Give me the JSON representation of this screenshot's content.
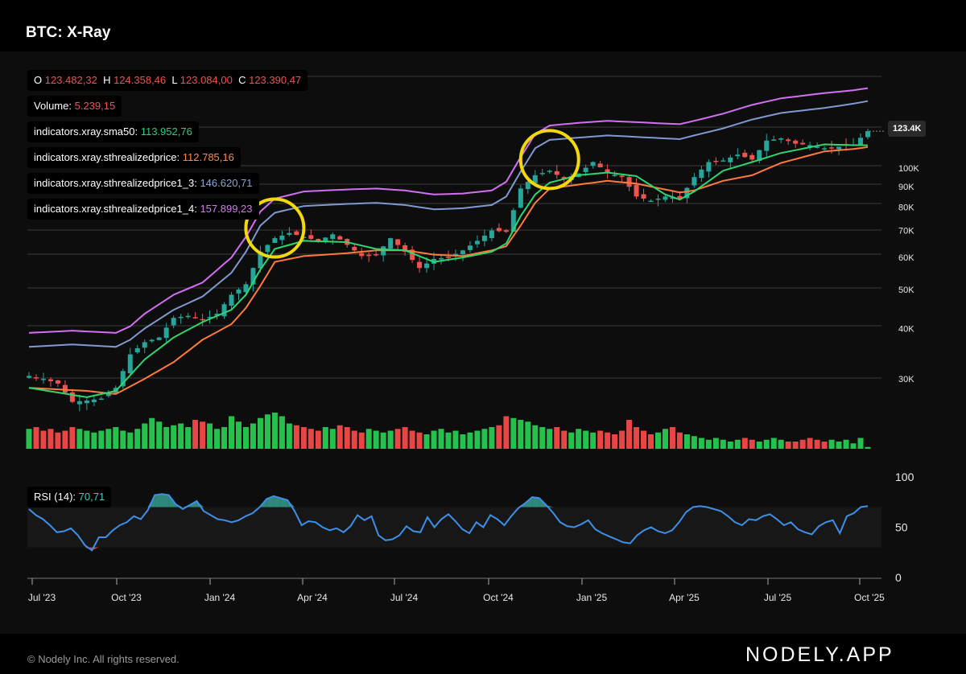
{
  "header": {
    "title": "BTC: X-Ray"
  },
  "legend": {
    "ohlc": {
      "o_label": "O",
      "o": "123.482,32",
      "h_label": "H",
      "h": "124.358,46",
      "l_label": "L",
      "l": "123.084,00",
      "c_label": "C",
      "c": "123.390,47"
    },
    "volume": {
      "label": "Volume:",
      "value": "5.239,15"
    },
    "sma50": {
      "label": "indicators.xray.sma50:",
      "value": "113.952,76"
    },
    "realized": {
      "label": "indicators.xray.sthrealizedprice:",
      "value": "112.785,16"
    },
    "realized13": {
      "label": "indicators.xray.sthrealizedprice1_3:",
      "value": "146.620,71"
    },
    "realized14": {
      "label": "indicators.xray.sthrealizedprice1_4:",
      "value": "157.899,23"
    }
  },
  "rsi_legend": {
    "label": "RSI (14):",
    "value": "70,71"
  },
  "price_tag": "123.4K",
  "footer": {
    "copyright": "© Nodely Inc. All rights reserved.",
    "brand": "NODELY.APP"
  },
  "colors": {
    "up": "#26a69a",
    "down": "#ef5350",
    "vol_up": "#26c04e",
    "vol_down": "#e84545",
    "sma50": "#2ed66f",
    "realized": "#ff7a3c",
    "realized13": "#7f9ad0",
    "realized14": "#d46ff5",
    "rsi": "#3d8fe8",
    "highlight": "#f2d80c"
  },
  "chart_data": [
    {
      "type": "candlestick",
      "scale": "log",
      "y_ticks": [
        "30K",
        "40K",
        "50K",
        "60K",
        "70K",
        "80K",
        "90K",
        "100K"
      ],
      "y_tick_values": [
        30000,
        40000,
        50000,
        60000,
        70000,
        80000,
        90000,
        100000
      ],
      "x_ticks": [
        "Jul '23",
        "Oct '23",
        "Jan '24",
        "Apr '24",
        "Jul '24",
        "Oct '24",
        "Jan '25",
        "Apr '25",
        "Jul '25",
        "Oct '25"
      ],
      "last_price_label": "123.4K",
      "series": [
        {
          "name": "indicators.xray.sma50"
        },
        {
          "name": "indicators.xray.sthrealizedprice"
        },
        {
          "name": "indicators.xray.sthrealizedprice1_3"
        },
        {
          "name": "indicators.xray.sthrealizedprice1_4"
        }
      ],
      "price_path": [
        [
          0,
          30500
        ],
        [
          2,
          30000
        ],
        [
          4,
          29200
        ],
        [
          6,
          26300
        ],
        [
          8,
          26500
        ],
        [
          10,
          26800
        ],
        [
          12,
          28500
        ],
        [
          14,
          34500
        ],
        [
          16,
          37000
        ],
        [
          18,
          38000
        ],
        [
          20,
          42500
        ],
        [
          22,
          43000
        ],
        [
          24,
          42000
        ],
        [
          26,
          43500
        ],
        [
          28,
          48500
        ],
        [
          30,
          51500
        ],
        [
          32,
          62000
        ],
        [
          34,
          67000
        ],
        [
          36,
          69000
        ],
        [
          38,
          67500
        ],
        [
          40,
          66000
        ],
        [
          42,
          68500
        ],
        [
          44,
          64500
        ],
        [
          46,
          60500
        ],
        [
          48,
          61000
        ],
        [
          50,
          67000
        ],
        [
          52,
          62000
        ],
        [
          54,
          56500
        ],
        [
          56,
          59500
        ],
        [
          58,
          60000
        ],
        [
          60,
          62500
        ],
        [
          62,
          66000
        ],
        [
          64,
          70000
        ],
        [
          66,
          69500
        ],
        [
          68,
          89000
        ],
        [
          70,
          96000
        ],
        [
          72,
          98500
        ],
        [
          74,
          94000
        ],
        [
          76,
          97000
        ],
        [
          78,
          103500
        ],
        [
          80,
          97500
        ],
        [
          82,
          95000
        ],
        [
          84,
          85000
        ],
        [
          86,
          83000
        ],
        [
          88,
          85000
        ],
        [
          90,
          84000
        ],
        [
          92,
          95000
        ],
        [
          94,
          103500
        ],
        [
          96,
          104500
        ],
        [
          98,
          108000
        ],
        [
          100,
          105000
        ],
        [
          102,
          117000
        ],
        [
          104,
          118500
        ],
        [
          106,
          115000
        ],
        [
          108,
          114000
        ],
        [
          110,
          112000
        ],
        [
          112,
          113000
        ],
        [
          114,
          114500
        ],
        [
          116,
          123500
        ]
      ],
      "sma50_path": [
        [
          0,
          28500
        ],
        [
          8,
          27000
        ],
        [
          12,
          28000
        ],
        [
          16,
          33500
        ],
        [
          20,
          38000
        ],
        [
          24,
          41500
        ],
        [
          28,
          44500
        ],
        [
          30,
          48500
        ],
        [
          32,
          56000
        ],
        [
          34,
          63000
        ],
        [
          38,
          66000
        ],
        [
          44,
          65500
        ],
        [
          48,
          63000
        ],
        [
          52,
          62500
        ],
        [
          56,
          58500
        ],
        [
          60,
          60000
        ],
        [
          64,
          62000
        ],
        [
          66,
          65000
        ],
        [
          68,
          76000
        ],
        [
          70,
          86000
        ],
        [
          72,
          92000
        ],
        [
          76,
          96000
        ],
        [
          80,
          97500
        ],
        [
          84,
          95500
        ],
        [
          88,
          86000
        ],
        [
          90,
          83500
        ],
        [
          92,
          87500
        ],
        [
          96,
          98500
        ],
        [
          100,
          103500
        ],
        [
          104,
          109000
        ],
        [
          110,
          114500
        ],
        [
          114,
          114000
        ],
        [
          116,
          113950
        ]
      ],
      "realized_path": [
        [
          0,
          28500
        ],
        [
          8,
          28000
        ],
        [
          12,
          27500
        ],
        [
          16,
          30000
        ],
        [
          20,
          33000
        ],
        [
          24,
          37500
        ],
        [
          28,
          41000
        ],
        [
          30,
          45000
        ],
        [
          32,
          51000
        ],
        [
          34,
          58500
        ],
        [
          38,
          60500
        ],
        [
          44,
          61500
        ],
        [
          48,
          62500
        ],
        [
          52,
          62500
        ],
        [
          56,
          61000
        ],
        [
          60,
          60500
        ],
        [
          64,
          62500
        ],
        [
          66,
          64000
        ],
        [
          68,
          72000
        ],
        [
          70,
          82000
        ],
        [
          72,
          89000
        ],
        [
          76,
          91000
        ],
        [
          80,
          93000
        ],
        [
          84,
          91500
        ],
        [
          88,
          88500
        ],
        [
          90,
          87000
        ],
        [
          92,
          88000
        ],
        [
          96,
          93000
        ],
        [
          100,
          96000
        ],
        [
          104,
          103000
        ],
        [
          110,
          110000
        ],
        [
          114,
          111500
        ],
        [
          116,
          112785
        ]
      ],
      "realized13_path": [
        [
          0,
          36000
        ],
        [
          6,
          36500
        ],
        [
          12,
          36000
        ],
        [
          14,
          37500
        ],
        [
          16,
          40000
        ],
        [
          20,
          44500
        ],
        [
          24,
          48000
        ],
        [
          28,
          55000
        ],
        [
          30,
          62000
        ],
        [
          32,
          72000
        ],
        [
          34,
          77500
        ],
        [
          38,
          80500
        ],
        [
          44,
          81500
        ],
        [
          48,
          82000
        ],
        [
          52,
          81000
        ],
        [
          56,
          79000
        ],
        [
          60,
          79500
        ],
        [
          64,
          81000
        ],
        [
          66,
          85000
        ],
        [
          68,
          98000
        ],
        [
          70,
          112000
        ],
        [
          72,
          117500
        ],
        [
          76,
          119000
        ],
        [
          80,
          120500
        ],
        [
          84,
          119500
        ],
        [
          88,
          118500
        ],
        [
          90,
          118000
        ],
        [
          92,
          120500
        ],
        [
          96,
          125500
        ],
        [
          100,
          132000
        ],
        [
          104,
          137000
        ],
        [
          110,
          141000
        ],
        [
          114,
          144500
        ],
        [
          116,
          146620
        ]
      ],
      "realized14_path": [
        [
          0,
          39000
        ],
        [
          6,
          39500
        ],
        [
          12,
          39000
        ],
        [
          14,
          40500
        ],
        [
          16,
          43500
        ],
        [
          20,
          48500
        ],
        [
          24,
          52000
        ],
        [
          28,
          60000
        ],
        [
          30,
          67500
        ],
        [
          32,
          78000
        ],
        [
          34,
          84000
        ],
        [
          38,
          87500
        ],
        [
          44,
          88500
        ],
        [
          48,
          89000
        ],
        [
          52,
          88000
        ],
        [
          56,
          86000
        ],
        [
          60,
          86500
        ],
        [
          64,
          88000
        ],
        [
          66,
          92500
        ],
        [
          68,
          106500
        ],
        [
          70,
          121500
        ],
        [
          72,
          127500
        ],
        [
          76,
          129500
        ],
        [
          80,
          131000
        ],
        [
          84,
          130000
        ],
        [
          88,
          129000
        ],
        [
          90,
          128500
        ],
        [
          92,
          131000
        ],
        [
          96,
          136500
        ],
        [
          100,
          143500
        ],
        [
          104,
          149000
        ],
        [
          110,
          153500
        ],
        [
          114,
          156000
        ],
        [
          116,
          157899
        ]
      ],
      "highlights": [
        {
          "index": 34,
          "price": 71000
        },
        {
          "index": 72,
          "price": 105000
        }
      ]
    },
    {
      "type": "bar",
      "title": "Volume",
      "volume_values": [
        0.55,
        0.6,
        0.5,
        0.55,
        0.45,
        0.5,
        0.6,
        0.55,
        0.5,
        0.45,
        0.5,
        0.55,
        0.6,
        0.5,
        0.45,
        0.55,
        0.7,
        0.85,
        0.75,
        0.6,
        0.65,
        0.7,
        0.6,
        0.8,
        0.75,
        0.7,
        0.55,
        0.6,
        0.9,
        0.75,
        0.6,
        0.7,
        0.85,
        0.95,
        1.0,
        0.9,
        0.7,
        0.65,
        0.6,
        0.55,
        0.5,
        0.6,
        0.55,
        0.65,
        0.6,
        0.5,
        0.45,
        0.55,
        0.5,
        0.45,
        0.5,
        0.55,
        0.6,
        0.5,
        0.45,
        0.4,
        0.5,
        0.55,
        0.45,
        0.5,
        0.4,
        0.45,
        0.5,
        0.55,
        0.6,
        0.65,
        0.9,
        0.85,
        0.8,
        0.75,
        0.65,
        0.6,
        0.55,
        0.6,
        0.5,
        0.45,
        0.55,
        0.5,
        0.45,
        0.5,
        0.45,
        0.4,
        0.5,
        0.8,
        0.6,
        0.5,
        0.4,
        0.45,
        0.55,
        0.6,
        0.45,
        0.4,
        0.35,
        0.3,
        0.25,
        0.3,
        0.25,
        0.2,
        0.25,
        0.3,
        0.25,
        0.2,
        0.25,
        0.3,
        0.25,
        0.2,
        0.2,
        0.25,
        0.3,
        0.25,
        0.2,
        0.25,
        0.2,
        0.25,
        0.15,
        0.3,
        0.05
      ]
    },
    {
      "type": "line",
      "title": "RSI (14)",
      "y_ticks": [
        "0",
        "50",
        "100"
      ],
      "ylim": [
        0,
        100
      ],
      "rsi_values": [
        68,
        62,
        58,
        52,
        45,
        46,
        49,
        42,
        32,
        27,
        40,
        40,
        47,
        52,
        55,
        61,
        58,
        67,
        82,
        83,
        82,
        73,
        68,
        72,
        76,
        66,
        62,
        58,
        57,
        55,
        57,
        61,
        64,
        70,
        78,
        81,
        79,
        77,
        66,
        52,
        56,
        55,
        50,
        47,
        49,
        45,
        51,
        62,
        57,
        61,
        42,
        37,
        38,
        42,
        51,
        46,
        45,
        60,
        50,
        58,
        63,
        56,
        48,
        44,
        55,
        50,
        62,
        58,
        52,
        61,
        69,
        74,
        80,
        79,
        72,
        64,
        55,
        51,
        50,
        53,
        57,
        48,
        44,
        41,
        38,
        35,
        34,
        42,
        47,
        50,
        46,
        44,
        47,
        55,
        65,
        70,
        71,
        70,
        68,
        66,
        61,
        55,
        52,
        58,
        57,
        61,
        63,
        58,
        52,
        55,
        48,
        45,
        43,
        51,
        55,
        57,
        44,
        61,
        64,
        70,
        71
      ]
    }
  ]
}
